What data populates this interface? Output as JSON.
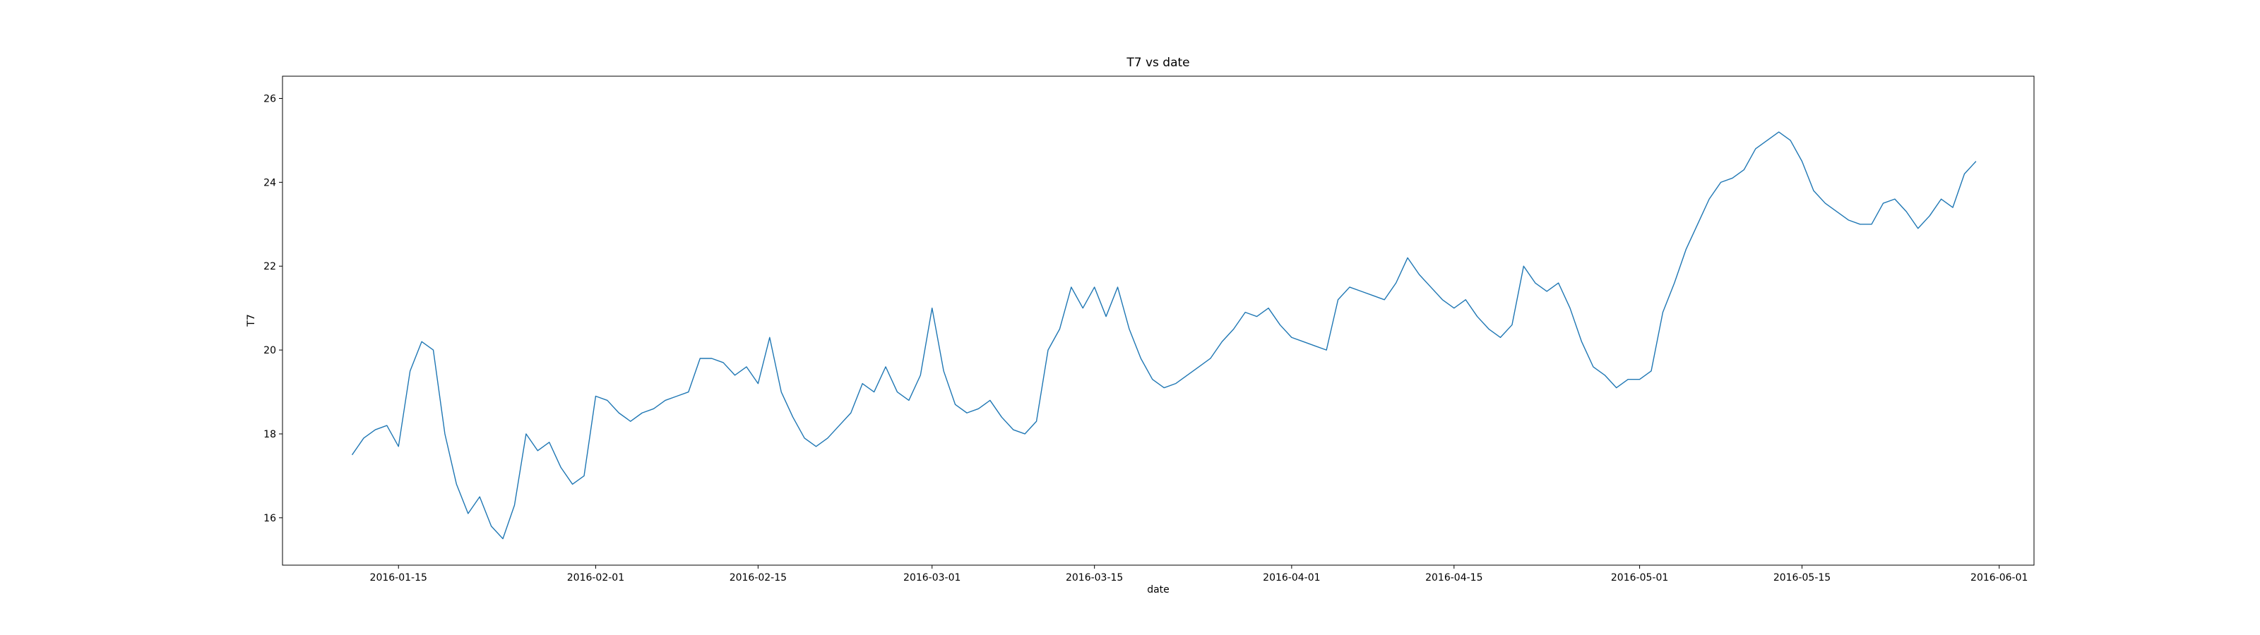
{
  "chart_data": {
    "type": "line",
    "title": "T7 vs date",
    "xlabel": "date",
    "ylabel": "T7",
    "color": "#1f77b4",
    "x": [
      "2016-01-11",
      "2016-01-12",
      "2016-01-13",
      "2016-01-14",
      "2016-01-15",
      "2016-01-16",
      "2016-01-17",
      "2016-01-18",
      "2016-01-19",
      "2016-01-20",
      "2016-01-21",
      "2016-01-22",
      "2016-01-23",
      "2016-01-24",
      "2016-01-25",
      "2016-01-26",
      "2016-01-27",
      "2016-01-28",
      "2016-01-29",
      "2016-01-30",
      "2016-01-31",
      "2016-02-01",
      "2016-02-02",
      "2016-02-03",
      "2016-02-04",
      "2016-02-05",
      "2016-02-06",
      "2016-02-07",
      "2016-02-08",
      "2016-02-09",
      "2016-02-10",
      "2016-02-11",
      "2016-02-12",
      "2016-02-13",
      "2016-02-14",
      "2016-02-15",
      "2016-02-16",
      "2016-02-17",
      "2016-02-18",
      "2016-02-19",
      "2016-02-20",
      "2016-02-21",
      "2016-02-22",
      "2016-02-23",
      "2016-02-24",
      "2016-02-25",
      "2016-02-26",
      "2016-02-27",
      "2016-02-28",
      "2016-02-29",
      "2016-03-01",
      "2016-03-02",
      "2016-03-03",
      "2016-03-04",
      "2016-03-05",
      "2016-03-06",
      "2016-03-07",
      "2016-03-08",
      "2016-03-09",
      "2016-03-10",
      "2016-03-11",
      "2016-03-12",
      "2016-03-13",
      "2016-03-14",
      "2016-03-15",
      "2016-03-16",
      "2016-03-17",
      "2016-03-18",
      "2016-03-19",
      "2016-03-20",
      "2016-03-21",
      "2016-03-22",
      "2016-03-23",
      "2016-03-24",
      "2016-03-25",
      "2016-03-26",
      "2016-03-27",
      "2016-03-28",
      "2016-03-29",
      "2016-03-30",
      "2016-03-31",
      "2016-04-01",
      "2016-04-02",
      "2016-04-03",
      "2016-04-04",
      "2016-04-05",
      "2016-04-06",
      "2016-04-07",
      "2016-04-08",
      "2016-04-09",
      "2016-04-10",
      "2016-04-11",
      "2016-04-12",
      "2016-04-13",
      "2016-04-14",
      "2016-04-15",
      "2016-04-16",
      "2016-04-17",
      "2016-04-18",
      "2016-04-19",
      "2016-04-20",
      "2016-04-21",
      "2016-04-22",
      "2016-04-23",
      "2016-04-24",
      "2016-04-25",
      "2016-04-26",
      "2016-04-27",
      "2016-04-28",
      "2016-04-29",
      "2016-04-30",
      "2016-05-01",
      "2016-05-02",
      "2016-05-03",
      "2016-05-04",
      "2016-05-05",
      "2016-05-06",
      "2016-05-07",
      "2016-05-08",
      "2016-05-09",
      "2016-05-10",
      "2016-05-11",
      "2016-05-12",
      "2016-05-13",
      "2016-05-14",
      "2016-05-15",
      "2016-05-16",
      "2016-05-17",
      "2016-05-18",
      "2016-05-19",
      "2016-05-20",
      "2016-05-21",
      "2016-05-22",
      "2016-05-23",
      "2016-05-24",
      "2016-05-25",
      "2016-05-26",
      "2016-05-27",
      "2016-05-28",
      "2016-05-29",
      "2016-05-30"
    ],
    "values": [
      17.5,
      17.9,
      18.1,
      18.2,
      17.7,
      19.5,
      20.2,
      20.0,
      18.0,
      16.8,
      16.1,
      16.5,
      15.8,
      15.5,
      16.3,
      18.0,
      17.6,
      17.8,
      17.2,
      16.8,
      17.0,
      18.9,
      18.8,
      18.5,
      18.3,
      18.5,
      18.6,
      18.8,
      18.9,
      19.0,
      19.8,
      19.8,
      19.7,
      19.4,
      19.6,
      19.2,
      20.3,
      19.0,
      18.4,
      17.9,
      17.7,
      17.9,
      18.2,
      18.5,
      19.2,
      19.0,
      19.6,
      19.0,
      18.8,
      19.4,
      21.0,
      19.5,
      18.7,
      18.5,
      18.6,
      18.8,
      18.4,
      18.1,
      18.0,
      18.3,
      20.0,
      20.5,
      21.5,
      21.0,
      21.5,
      20.8,
      21.5,
      20.5,
      19.8,
      19.3,
      19.1,
      19.2,
      19.4,
      19.6,
      19.8,
      20.2,
      20.5,
      20.9,
      20.8,
      21.0,
      20.6,
      20.3,
      20.2,
      20.1,
      20.0,
      21.2,
      21.5,
      21.4,
      21.3,
      21.2,
      21.6,
      22.2,
      21.8,
      21.5,
      21.2,
      21.0,
      21.2,
      20.8,
      20.5,
      20.3,
      20.6,
      22.0,
      21.6,
      21.4,
      21.6,
      21.0,
      20.2,
      19.6,
      19.4,
      19.1,
      19.3,
      19.3,
      19.5,
      20.9,
      21.6,
      22.4,
      23.0,
      23.6,
      24.0,
      24.1,
      24.3,
      24.8,
      25.0,
      25.2,
      25.0,
      24.5,
      23.8,
      23.5,
      23.3,
      23.1,
      23.0,
      23.0,
      23.5,
      23.6,
      23.3,
      22.9,
      23.2,
      23.6,
      23.4,
      24.2,
      24.5
    ],
    "xlim": [
      "2016-01-05",
      "2016-06-04"
    ],
    "xticks": [
      "2016-01-15",
      "2016-02-01",
      "2016-02-15",
      "2016-03-01",
      "2016-03-15",
      "2016-04-01",
      "2016-04-15",
      "2016-05-01",
      "2016-05-15",
      "2016-06-01"
    ],
    "ylim": [
      14.87,
      26.53
    ],
    "yticks": [
      16,
      18,
      20,
      22,
      24,
      26
    ],
    "grid": false
  }
}
